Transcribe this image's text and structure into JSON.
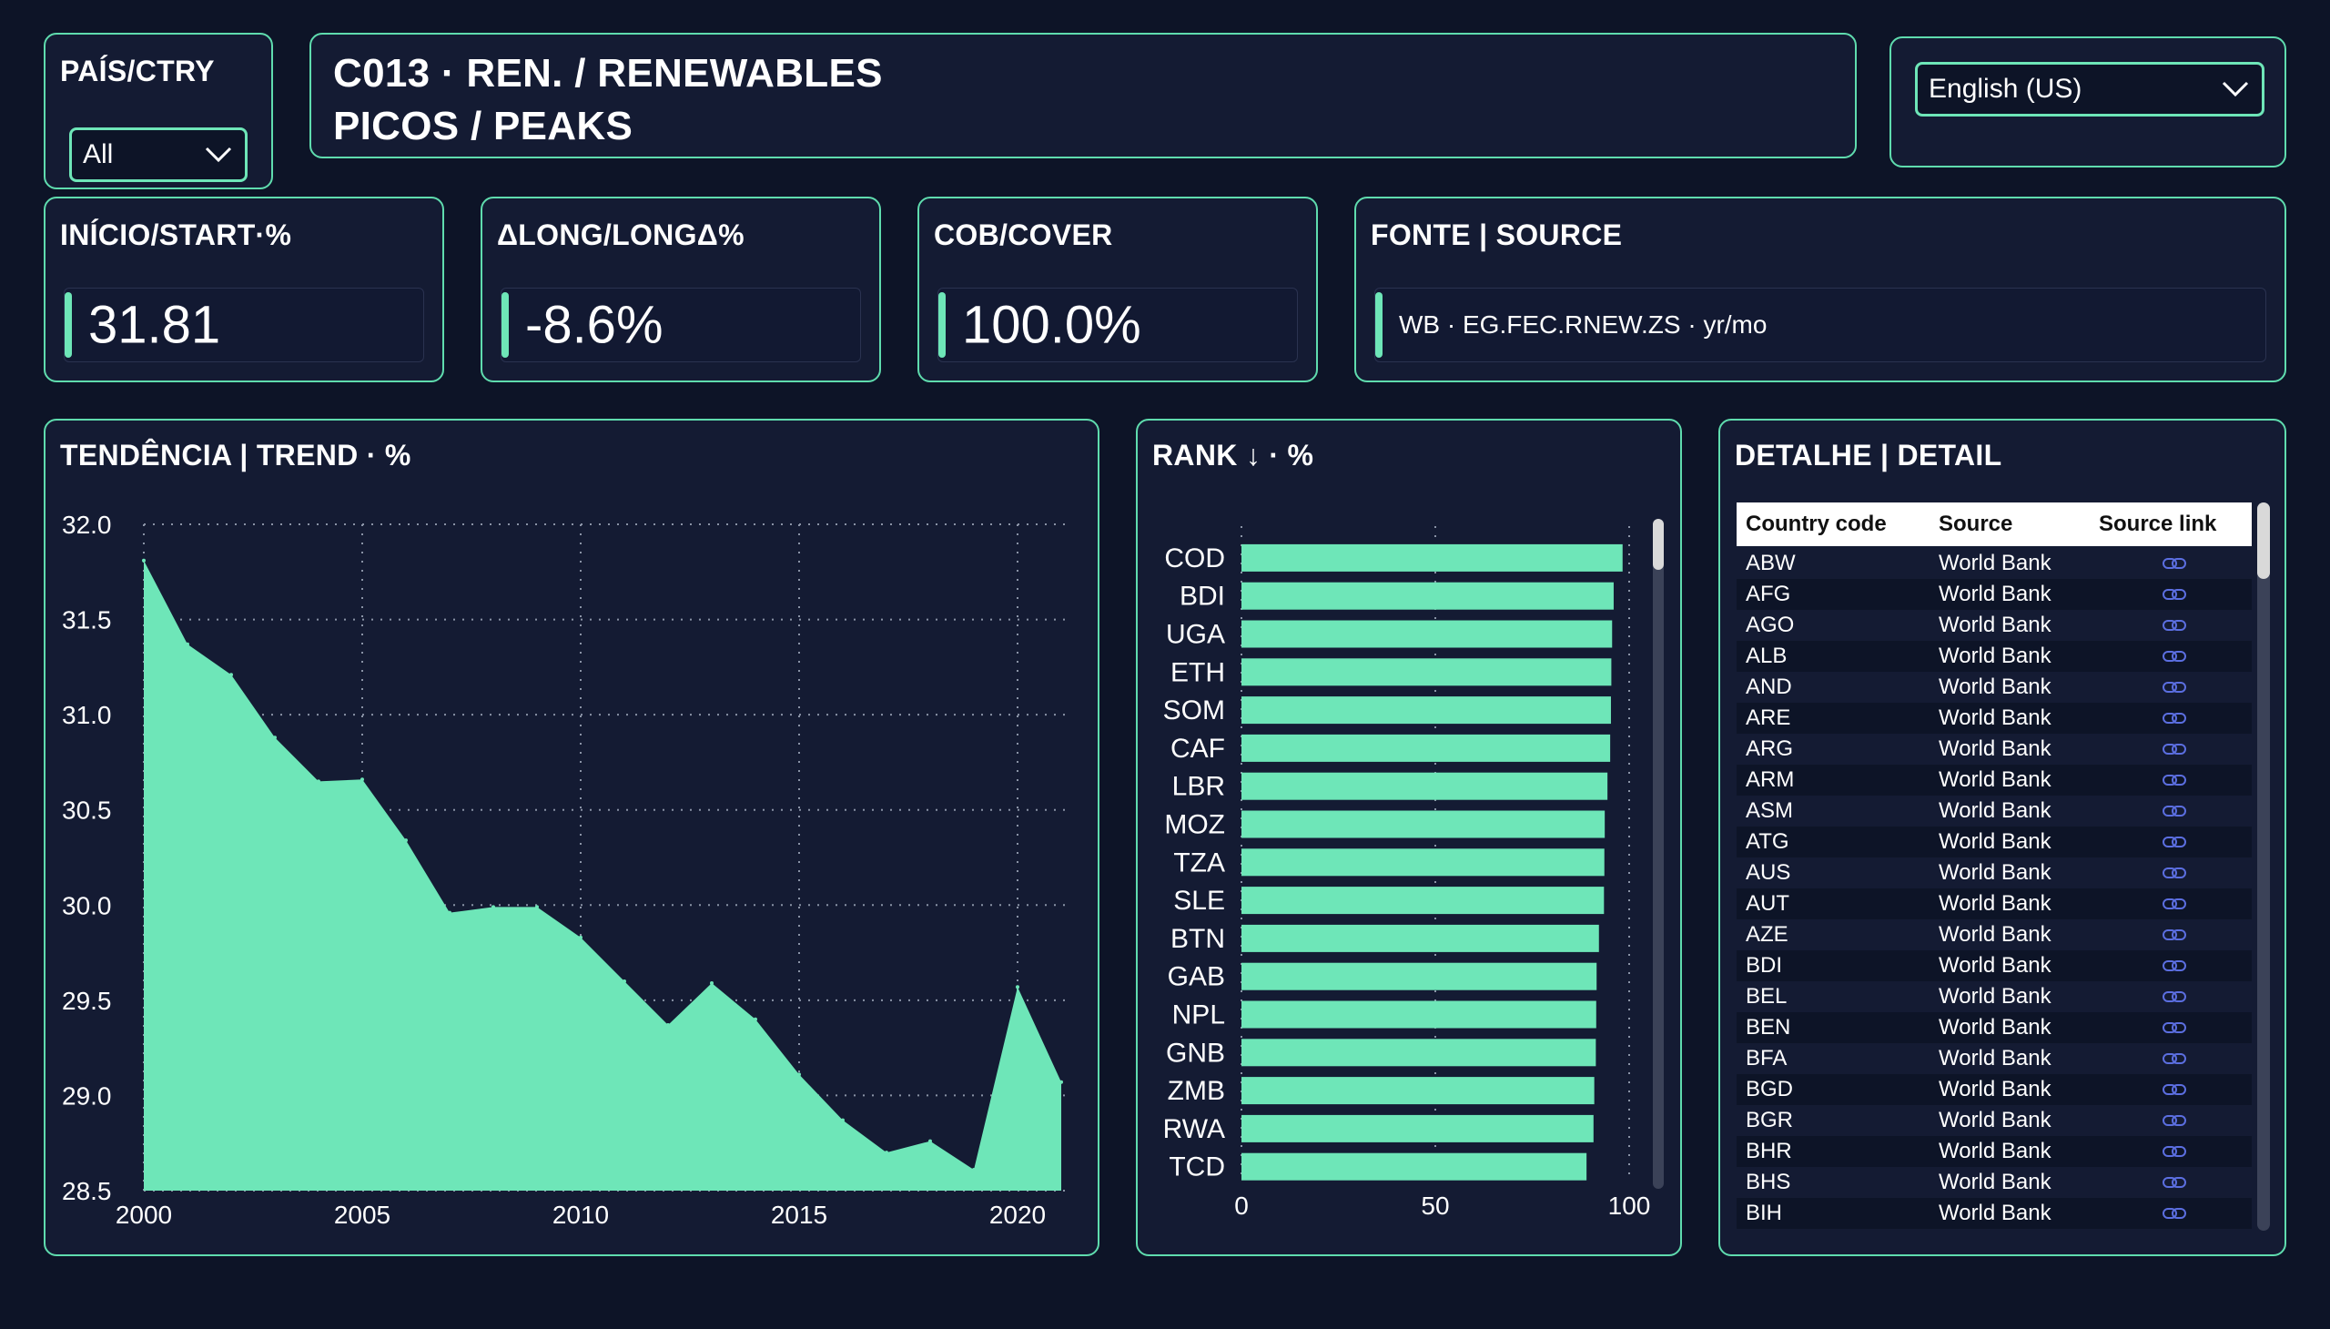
{
  "filter": {
    "label": "PAÍS/CTRY",
    "value": "All"
  },
  "header": {
    "line1": "C013 · REN. / RENEWABLES",
    "line2": "PICOS / PEAKS"
  },
  "language": {
    "value": "English (US)"
  },
  "kpis": [
    {
      "label": "INÍCIO/START·%",
      "value": "31.81"
    },
    {
      "label": "ΔLONG/LONGΔ%",
      "value": "-8.6%"
    },
    {
      "label": "COB/COVER",
      "value": "100.0%"
    }
  ],
  "source": {
    "label": "FONTE | SOURCE",
    "value": "WB · EG.FEC.RNEW.ZS · yr/mo"
  },
  "colors": {
    "accent": "#6ee6b8",
    "background": "#0d1427",
    "card": "#141b33",
    "link": "#5b6ee0"
  },
  "trend": {
    "title": "TENDÊNCIA | TREND · %",
    "chart_data": {
      "type": "area",
      "x": [
        2000,
        2001,
        2002,
        2003,
        2004,
        2005,
        2006,
        2007,
        2008,
        2009,
        2010,
        2011,
        2012,
        2013,
        2014,
        2015,
        2016,
        2017,
        2018,
        2019,
        2020,
        2021
      ],
      "values": [
        31.81,
        31.37,
        31.21,
        30.88,
        30.65,
        30.66,
        30.34,
        29.96,
        29.99,
        29.99,
        29.83,
        29.6,
        29.37,
        29.59,
        29.4,
        29.11,
        28.87,
        28.7,
        28.76,
        28.61,
        29.57,
        29.07
      ],
      "xticks": [
        "2000",
        "2005",
        "2010",
        "2015",
        "2020"
      ],
      "yticks": [
        "32.0",
        "31.5",
        "31.0",
        "30.5",
        "30.0",
        "29.5",
        "29.0",
        "28.5"
      ],
      "ylim": [
        28.5,
        32.0
      ],
      "grid": true
    }
  },
  "rank": {
    "title": "RANK ↓ · %",
    "chart_data": {
      "type": "bar",
      "orientation": "horizontal",
      "categories": [
        "COD",
        "BDI",
        "UGA",
        "ETH",
        "SOM",
        "CAF",
        "LBR",
        "MOZ",
        "TZA",
        "SLE",
        "BTN",
        "GAB",
        "NPL",
        "GNB",
        "ZMB",
        "RWA",
        "TCD"
      ],
      "values": [
        98.3,
        96.0,
        95.6,
        95.4,
        95.3,
        95.1,
        94.4,
        93.7,
        93.6,
        93.5,
        92.2,
        91.6,
        91.5,
        91.4,
        91.0,
        90.8,
        89.0
      ],
      "xticks": [
        "0",
        "50",
        "100"
      ],
      "xlim": [
        0,
        100
      ],
      "grid": true
    }
  },
  "detail": {
    "title": "DETALHE | DETAIL",
    "columns": [
      "Country code",
      "Source",
      "Source link"
    ],
    "rows": [
      {
        "code": "ABW",
        "source": "World Bank"
      },
      {
        "code": "AFG",
        "source": "World Bank"
      },
      {
        "code": "AGO",
        "source": "World Bank"
      },
      {
        "code": "ALB",
        "source": "World Bank"
      },
      {
        "code": "AND",
        "source": "World Bank"
      },
      {
        "code": "ARE",
        "source": "World Bank"
      },
      {
        "code": "ARG",
        "source": "World Bank"
      },
      {
        "code": "ARM",
        "source": "World Bank"
      },
      {
        "code": "ASM",
        "source": "World Bank"
      },
      {
        "code": "ATG",
        "source": "World Bank"
      },
      {
        "code": "AUS",
        "source": "World Bank"
      },
      {
        "code": "AUT",
        "source": "World Bank"
      },
      {
        "code": "AZE",
        "source": "World Bank"
      },
      {
        "code": "BDI",
        "source": "World Bank"
      },
      {
        "code": "BEL",
        "source": "World Bank"
      },
      {
        "code": "BEN",
        "source": "World Bank"
      },
      {
        "code": "BFA",
        "source": "World Bank"
      },
      {
        "code": "BGD",
        "source": "World Bank"
      },
      {
        "code": "BGR",
        "source": "World Bank"
      },
      {
        "code": "BHR",
        "source": "World Bank"
      },
      {
        "code": "BHS",
        "source": "World Bank"
      },
      {
        "code": "BIH",
        "source": "World Bank"
      }
    ],
    "link_icon": "link-icon"
  }
}
